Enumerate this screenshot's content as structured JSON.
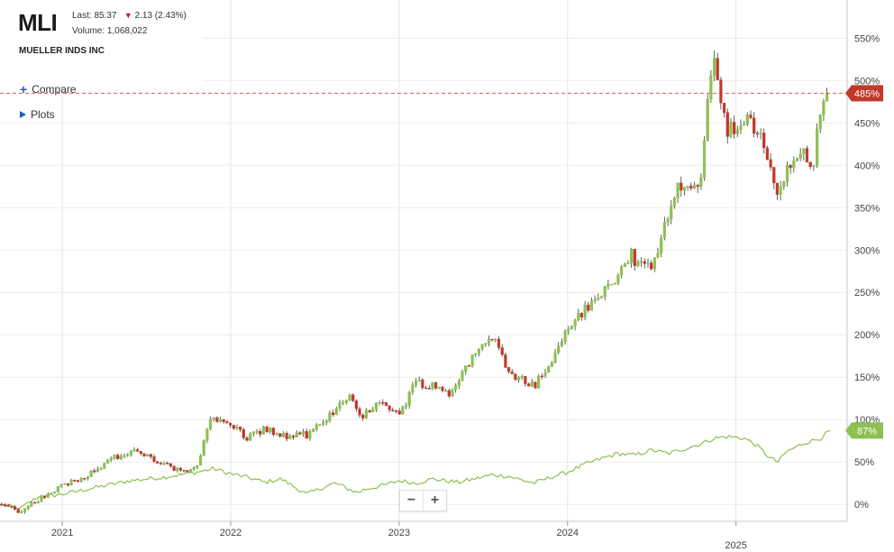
{
  "header": {
    "ticker": "MLI",
    "last_label": "Last:",
    "last_value": "85.37",
    "change": "2.13 (2.43%)",
    "volume_label": "Volume:",
    "volume_value": "1,068,022",
    "company": "MUELLER INDS INC"
  },
  "controls": {
    "compare_label": "Compare",
    "plots_label": "Plots",
    "zoom_out": "−",
    "zoom_in": "+"
  },
  "colors": {
    "up": "#8cc152",
    "down": "#c0392b",
    "benchmark": "#8cc152",
    "price_line": "#c0392b"
  },
  "icons": [
    "plus-icon",
    "triangle-right-icon",
    "down-arrow-icon"
  ],
  "chart_data": {
    "type": "candlestick",
    "y_axis": {
      "min": -20,
      "max": 595,
      "ticks": [
        0,
        50,
        100,
        150,
        200,
        250,
        300,
        350,
        400,
        450,
        500,
        550
      ],
      "tick_labels": [
        "0%",
        "50%",
        "100%",
        "150%",
        "200%",
        "250%",
        "300%",
        "350%",
        "400%",
        "450%",
        "500%",
        "550%"
      ],
      "position": "right"
    },
    "x_axis": {
      "min": 2020.63,
      "max": 2025.66,
      "ticks": [
        2021,
        2022,
        2023,
        2024,
        2025
      ],
      "tick_labels": [
        "2021",
        "2022",
        "2023",
        "2024",
        "2025"
      ]
    },
    "grid": true,
    "last_value_labels": {
      "price": "485%",
      "benchmark": "87%"
    },
    "price_path": [
      [
        2020.63,
        0
      ],
      [
        2020.75,
        -8
      ],
      [
        2020.85,
        5
      ],
      [
        2021.0,
        22
      ],
      [
        2021.15,
        35
      ],
      [
        2021.3,
        55
      ],
      [
        2021.45,
        62
      ],
      [
        2021.55,
        52
      ],
      [
        2021.7,
        38
      ],
      [
        2021.8,
        45
      ],
      [
        2021.87,
        100
      ],
      [
        2022.0,
        95
      ],
      [
        2022.1,
        78
      ],
      [
        2022.2,
        90
      ],
      [
        2022.3,
        80
      ],
      [
        2022.45,
        82
      ],
      [
        2022.55,
        95
      ],
      [
        2022.62,
        112
      ],
      [
        2022.7,
        130
      ],
      [
        2022.78,
        105
      ],
      [
        2022.9,
        120
      ],
      [
        2022.95,
        115
      ],
      [
        2023.0,
        105
      ],
      [
        2023.1,
        145
      ],
      [
        2023.2,
        140
      ],
      [
        2023.3,
        130
      ],
      [
        2023.4,
        165
      ],
      [
        2023.5,
        185
      ],
      [
        2023.55,
        200
      ],
      [
        2023.62,
        170
      ],
      [
        2023.7,
        150
      ],
      [
        2023.8,
        140
      ],
      [
        2023.9,
        165
      ],
      [
        2024.0,
        210
      ],
      [
        2024.1,
        228
      ],
      [
        2024.2,
        248
      ],
      [
        2024.3,
        270
      ],
      [
        2024.38,
        295
      ],
      [
        2024.45,
        275
      ],
      [
        2024.52,
        290
      ],
      [
        2024.6,
        340
      ],
      [
        2024.66,
        380
      ],
      [
        2024.72,
        365
      ],
      [
        2024.8,
        395
      ],
      [
        2024.83,
        470
      ],
      [
        2024.87,
        530
      ],
      [
        2024.9,
        490
      ],
      [
        2024.95,
        445
      ],
      [
        2025.0,
        440
      ],
      [
        2025.07,
        450
      ],
      [
        2025.15,
        430
      ],
      [
        2025.2,
        405
      ],
      [
        2025.25,
        365
      ],
      [
        2025.3,
        390
      ],
      [
        2025.38,
        420
      ],
      [
        2025.45,
        395
      ],
      [
        2025.5,
        455
      ],
      [
        2025.55,
        485
      ]
    ],
    "benchmark_path": [
      [
        2020.63,
        0
      ],
      [
        2020.75,
        -5
      ],
      [
        2020.85,
        8
      ],
      [
        2021.0,
        12
      ],
      [
        2021.2,
        20
      ],
      [
        2021.4,
        28
      ],
      [
        2021.6,
        32
      ],
      [
        2021.8,
        38
      ],
      [
        2021.9,
        42
      ],
      [
        2022.0,
        36
      ],
      [
        2022.1,
        32
      ],
      [
        2022.2,
        26
      ],
      [
        2022.3,
        30
      ],
      [
        2022.45,
        12
      ],
      [
        2022.55,
        20
      ],
      [
        2022.62,
        25
      ],
      [
        2022.75,
        14
      ],
      [
        2022.8,
        18
      ],
      [
        2022.9,
        22
      ],
      [
        2023.0,
        28
      ],
      [
        2023.1,
        25
      ],
      [
        2023.2,
        30
      ],
      [
        2023.35,
        26
      ],
      [
        2023.45,
        30
      ],
      [
        2023.55,
        35
      ],
      [
        2023.65,
        33
      ],
      [
        2023.8,
        25
      ],
      [
        2023.9,
        32
      ],
      [
        2024.0,
        38
      ],
      [
        2024.1,
        47
      ],
      [
        2024.2,
        54
      ],
      [
        2024.3,
        60
      ],
      [
        2024.4,
        58
      ],
      [
        2024.5,
        64
      ],
      [
        2024.6,
        60
      ],
      [
        2024.7,
        66
      ],
      [
        2024.8,
        72
      ],
      [
        2024.87,
        78
      ],
      [
        2024.95,
        80
      ],
      [
        2025.05,
        78
      ],
      [
        2025.12,
        70
      ],
      [
        2025.2,
        55
      ],
      [
        2025.25,
        50
      ],
      [
        2025.3,
        62
      ],
      [
        2025.4,
        72
      ],
      [
        2025.5,
        78
      ],
      [
        2025.56,
        87
      ]
    ]
  }
}
